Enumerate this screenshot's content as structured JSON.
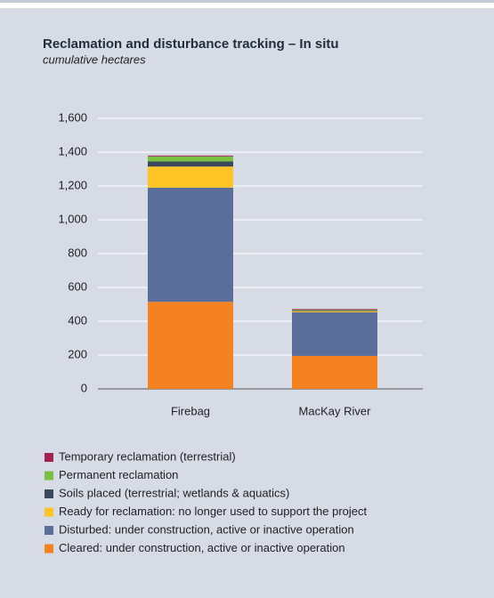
{
  "chart_data": {
    "type": "stacked_bar",
    "title": "Reclamation and disturbance tracking – In situ",
    "subtitle": "cumulative hectares",
    "categories": [
      "Firebag",
      "MacKay River"
    ],
    "series": [
      {
        "name": "Temporary reclamation (terrestrial)",
        "color": "#a3224f",
        "values": [
          5,
          4
        ]
      },
      {
        "name": "Permanent reclamation",
        "color": "#7ac143",
        "values": [
          30,
          3
        ]
      },
      {
        "name": "Soils placed (terrestrial; wetlands & aquatics)",
        "color": "#3b4a5a",
        "values": [
          30,
          5
        ]
      },
      {
        "name": "Ready for reclamation: no longer used to support the project",
        "color": "#ffc425",
        "values": [
          125,
          7
        ]
      },
      {
        "name": "Disturbed: under construction, active or inactive operation",
        "color": "#5a6e99",
        "values": [
          675,
          258
        ]
      },
      {
        "name": "Cleared: under construction, active or inactive operation",
        "color": "#f58220",
        "values": [
          515,
          195
        ]
      }
    ],
    "ylim": [
      0,
      1600
    ],
    "yticks": [
      0,
      {
        "value": 200,
        "label": "200"
      },
      400,
      600,
      800,
      {
        "value": 1000,
        "label": "1,000"
      },
      {
        "value": 1200,
        "label": "1,200"
      },
      {
        "value": 1400,
        "label": "1,400"
      },
      {
        "value": 1600,
        "label": "1,600"
      }
    ],
    "grid": true
  }
}
